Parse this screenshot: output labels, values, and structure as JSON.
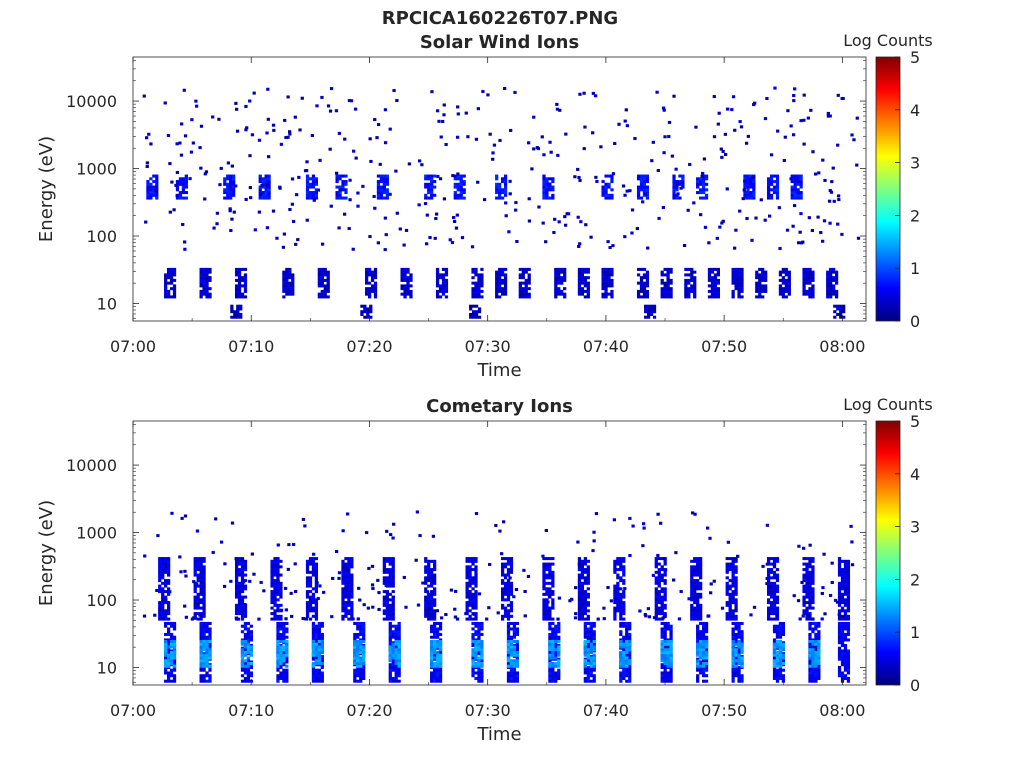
{
  "figure_title": "RPCICA160226T07.PNG",
  "colors": {
    "axis": "#262626",
    "colormap": [
      "#00007f",
      "#0000ff",
      "#007fff",
      "#00ffff",
      "#7fff7f",
      "#ffff00",
      "#ff7f00",
      "#ff0000",
      "#7f0000"
    ]
  },
  "chart_data": [
    {
      "type": "heatmap",
      "title": "Solar Wind Ions",
      "xlabel": "Time",
      "ylabel": "Energy (eV)",
      "colorbar_label": "Log Counts",
      "colorbar_ticks": [
        "0",
        "1",
        "2",
        "3",
        "4",
        "5"
      ],
      "clim": [
        0,
        5
      ],
      "x_ticks": [
        "07:00",
        "07:10",
        "07:20",
        "07:30",
        "07:40",
        "07:50",
        "08:00"
      ],
      "xlim": [
        "07:00",
        "08:02"
      ],
      "y_scale": "log",
      "y_ticks": [
        "10",
        "100",
        "1000",
        "10000"
      ],
      "ylim": [
        5.5,
        45000
      ],
      "grid": false,
      "bands": [
        {
          "energy_range_eV": [
            12,
            32
          ],
          "log_counts": 0.3,
          "time_minutes": [
            3,
            6,
            9,
            13,
            16,
            20,
            23,
            26,
            29,
            31,
            33,
            36,
            38,
            40,
            43,
            45,
            47,
            49,
            51,
            53,
            55,
            57,
            59
          ]
        },
        {
          "energy_range_eV": [
            350,
            800
          ],
          "log_counts": 0.6,
          "time_minutes": [
            1.5,
            4,
            8,
            11,
            15,
            17.5,
            21,
            25,
            27.5,
            31,
            35,
            40,
            43,
            46,
            48,
            52,
            54,
            56
          ]
        },
        {
          "energy_range_eV": [
            6,
            9
          ],
          "log_counts": 0.2,
          "time_minutes": [
            8.6,
            19.6,
            28.8,
            43.6,
            59.6
          ]
        }
      ]
    },
    {
      "type": "heatmap",
      "title": "Cometary Ions",
      "xlabel": "Time",
      "ylabel": "Energy (eV)",
      "colorbar_label": "Log Counts",
      "colorbar_ticks": [
        "0",
        "1",
        "2",
        "3",
        "4",
        "5"
      ],
      "clim": [
        0,
        5
      ],
      "x_ticks": [
        "07:00",
        "07:10",
        "07:20",
        "07:30",
        "07:40",
        "07:50",
        "08:00"
      ],
      "xlim": [
        "07:00",
        "08:02"
      ],
      "y_scale": "log",
      "y_ticks": [
        "10",
        "100",
        "1000",
        "10000"
      ],
      "ylim": [
        5.5,
        45000
      ],
      "grid": false,
      "bands": [
        {
          "energy_range_eV": [
            6,
            45
          ],
          "log_counts": 0.5,
          "time_minutes": [
            3,
            6,
            9.5,
            12.5,
            15.5,
            19,
            22,
            25.5,
            29,
            32,
            35.5,
            38.5,
            41.5,
            45,
            48,
            51,
            54.5,
            57.5,
            60
          ]
        },
        {
          "energy_range_eV": [
            10,
            25
          ],
          "log_counts": 1.3,
          "time_minutes": [
            3,
            6,
            9.5,
            12.5,
            15.5,
            19,
            22,
            25.5,
            29,
            32,
            35.5,
            38.5,
            41.5,
            45,
            48,
            51,
            54.5,
            57.5
          ]
        },
        {
          "energy_range_eV": [
            50,
            400
          ],
          "log_counts": 0.4,
          "time_minutes": [
            2.5,
            5.5,
            9,
            12,
            15,
            18,
            21.5,
            25,
            28.5,
            31.5,
            35,
            38,
            41,
            44.5,
            47.5,
            50.5,
            54,
            57,
            60
          ]
        }
      ]
    }
  ]
}
